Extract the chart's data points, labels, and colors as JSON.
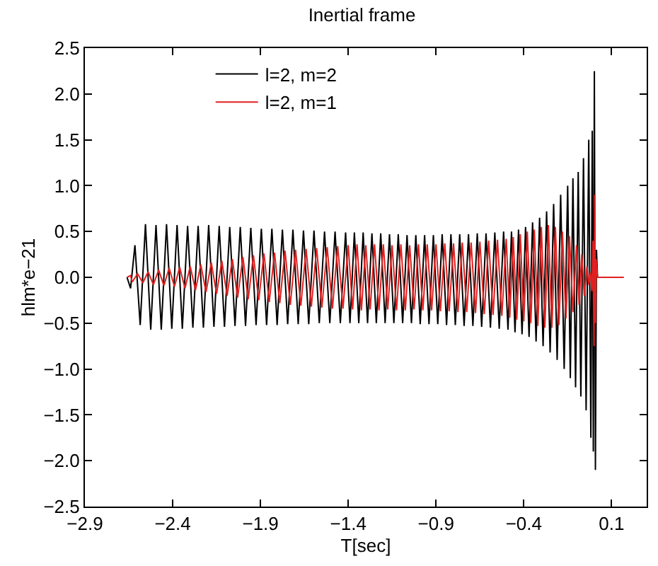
{
  "chart_data": {
    "type": "line",
    "title": "Inertial frame",
    "xlabel": "T[sec]",
    "ylabel": "hlm*e−21",
    "xlim": [
      -2.9,
      0.3
    ],
    "ylim": [
      -2.5,
      2.5
    ],
    "xticks": [
      {
        "value": -2.9,
        "label": "−2.9"
      },
      {
        "value": -2.4,
        "label": "−2.4"
      },
      {
        "value": -1.9,
        "label": "−1.9"
      },
      {
        "value": -1.4,
        "label": "−1.4"
      },
      {
        "value": -0.9,
        "label": "−0.9"
      },
      {
        "value": -0.4,
        "label": "−0.4"
      },
      0.1
    ],
    "yticks": [
      {
        "value": -2.5,
        "label": "−2.5"
      },
      {
        "value": -2.0,
        "label": "−2.0"
      },
      {
        "value": -1.5,
        "label": "−1.5"
      },
      {
        "value": -1.0,
        "label": "−1.0"
      },
      {
        "value": -0.5,
        "label": "−0.5"
      },
      {
        "value": 0,
        "label": "0.0"
      },
      0.5,
      {
        "value": 1,
        "label": "1.0"
      },
      1.5,
      {
        "value": 2,
        "label": "2.0"
      },
      2.5
    ],
    "legend": "top left",
    "marker": "none",
    "line_style": "solid",
    "series": [
      {
        "name": "l=2, m=2",
        "color": "#000000",
        "x": [
          -2.66,
          -2.64,
          -2.615,
          -2.585,
          -2.555,
          -2.525,
          -2.495,
          -2.465,
          -2.435,
          -2.405,
          -2.375,
          -2.345,
          -2.315,
          -2.285,
          -2.255,
          -2.225,
          -2.195,
          -2.165,
          -2.135,
          -2.105,
          -2.075,
          -2.045,
          -2.015,
          -1.985,
          -1.955,
          -1.925,
          -1.895,
          -1.865,
          -1.835,
          -1.805,
          -1.775,
          -1.745,
          -1.715,
          -1.685,
          -1.655,
          -1.625,
          -1.595,
          -1.565,
          -1.535,
          -1.505,
          -1.475,
          -1.445,
          -1.415,
          -1.39,
          -1.365,
          -1.34,
          -1.315,
          -1.29,
          -1.265,
          -1.24,
          -1.215,
          -1.19,
          -1.165,
          -1.14,
          -1.115,
          -1.09,
          -1.065,
          -1.04,
          -1.015,
          -0.99,
          -0.965,
          -0.94,
          -0.915,
          -0.89,
          -0.865,
          -0.84,
          -0.815,
          -0.79,
          -0.765,
          -0.74,
          -0.715,
          -0.69,
          -0.665,
          -0.64,
          -0.615,
          -0.59,
          -0.565,
          -0.54,
          -0.515,
          -0.49,
          -0.47,
          -0.45,
          -0.43,
          -0.41,
          -0.39,
          -0.37,
          -0.35,
          -0.33,
          -0.31,
          -0.29,
          -0.27,
          -0.25,
          -0.23,
          -0.21,
          -0.19,
          -0.17,
          -0.15,
          -0.135,
          -0.12,
          -0.105,
          -0.09,
          -0.075,
          -0.06,
          -0.045,
          -0.03,
          -0.018,
          -0.01,
          -0.004,
          0.002,
          0.008,
          0.014,
          0.02
        ],
        "values": [
          0,
          -0.12,
          0.35,
          -0.52,
          0.58,
          -0.57,
          0.57,
          -0.57,
          0.58,
          -0.56,
          0.57,
          -0.56,
          0.56,
          -0.55,
          0.56,
          -0.55,
          0.57,
          -0.54,
          0.56,
          -0.54,
          0.55,
          -0.53,
          0.55,
          -0.53,
          0.54,
          -0.52,
          0.53,
          -0.52,
          0.53,
          -0.52,
          0.52,
          -0.51,
          0.52,
          -0.51,
          0.51,
          -0.51,
          0.51,
          -0.5,
          0.5,
          -0.5,
          0.5,
          -0.5,
          0.49,
          -0.5,
          0.49,
          -0.5,
          0.49,
          -0.5,
          0.48,
          -0.5,
          0.48,
          -0.5,
          0.47,
          -0.5,
          0.47,
          -0.5,
          0.46,
          -0.5,
          0.46,
          -0.51,
          0.46,
          -0.51,
          0.46,
          -0.51,
          0.47,
          -0.52,
          0.47,
          -0.52,
          0.47,
          -0.53,
          0.47,
          -0.53,
          0.48,
          -0.54,
          0.48,
          -0.55,
          0.49,
          -0.56,
          0.5,
          -0.57,
          0.5,
          -0.6,
          0.52,
          -0.62,
          0.55,
          -0.65,
          0.6,
          -0.7,
          0.65,
          -0.75,
          0.72,
          -0.82,
          0.8,
          -0.9,
          0.9,
          -1.0,
          1.0,
          -1.1,
          1.08,
          -1.2,
          1.15,
          -1.3,
          1.3,
          -1.45,
          1.5,
          -1.75,
          1.6,
          -1.9,
          2.25,
          -2.1,
          0.3,
          0
        ]
      },
      {
        "name": "l=2, m=1",
        "color": "#e02020",
        "x": [
          -2.66,
          -2.64,
          -2.63,
          -2.6,
          -2.57,
          -2.54,
          -2.51,
          -2.48,
          -2.45,
          -2.42,
          -2.39,
          -2.36,
          -2.33,
          -2.3,
          -2.27,
          -2.24,
          -2.21,
          -2.18,
          -2.15,
          -2.12,
          -2.09,
          -2.06,
          -2.03,
          -2.0,
          -1.97,
          -1.94,
          -1.91,
          -1.88,
          -1.85,
          -1.82,
          -1.79,
          -1.76,
          -1.73,
          -1.7,
          -1.67,
          -1.64,
          -1.61,
          -1.58,
          -1.55,
          -1.52,
          -1.49,
          -1.46,
          -1.43,
          -1.4,
          -1.375,
          -1.35,
          -1.325,
          -1.3,
          -1.275,
          -1.25,
          -1.225,
          -1.2,
          -1.175,
          -1.15,
          -1.125,
          -1.1,
          -1.075,
          -1.05,
          -1.025,
          -1.0,
          -0.975,
          -0.95,
          -0.925,
          -0.9,
          -0.875,
          -0.85,
          -0.825,
          -0.8,
          -0.775,
          -0.75,
          -0.725,
          -0.7,
          -0.675,
          -0.65,
          -0.625,
          -0.6,
          -0.575,
          -0.55,
          -0.525,
          -0.5,
          -0.48,
          -0.46,
          -0.44,
          -0.42,
          -0.4,
          -0.38,
          -0.36,
          -0.34,
          -0.32,
          -0.3,
          -0.28,
          -0.26,
          -0.24,
          -0.22,
          -0.2,
          -0.18,
          -0.16,
          -0.14,
          -0.12,
          -0.1,
          -0.085,
          -0.07,
          -0.055,
          -0.04,
          -0.03,
          -0.02,
          -0.012,
          -0.006,
          0.0,
          0.004,
          0.008,
          0.012,
          0.02,
          0.17
        ],
        "values": [
          0,
          0.02,
          -0.05,
          0.04,
          -0.06,
          0.06,
          -0.08,
          0.08,
          -0.09,
          0.1,
          -0.1,
          0.11,
          -0.12,
          0.12,
          -0.14,
          0.14,
          -0.16,
          0.16,
          -0.18,
          0.18,
          -0.2,
          0.2,
          -0.22,
          0.22,
          -0.24,
          0.24,
          -0.25,
          0.26,
          -0.27,
          0.27,
          -0.28,
          0.29,
          -0.3,
          0.3,
          -0.31,
          0.31,
          -0.32,
          0.32,
          -0.33,
          0.33,
          -0.34,
          0.34,
          -0.34,
          0.35,
          -0.35,
          0.36,
          -0.36,
          0.35,
          -0.35,
          0.36,
          -0.36,
          0.36,
          -0.35,
          0.35,
          -0.36,
          0.36,
          -0.36,
          0.35,
          -0.35,
          0.36,
          -0.36,
          0.36,
          -0.36,
          0.36,
          -0.37,
          0.37,
          -0.37,
          0.37,
          -0.38,
          0.38,
          -0.38,
          0.38,
          -0.39,
          0.39,
          -0.4,
          0.4,
          -0.41,
          0.41,
          -0.42,
          0.42,
          -0.44,
          0.44,
          -0.46,
          0.47,
          -0.48,
          0.5,
          -0.5,
          0.52,
          -0.53,
          0.55,
          -0.55,
          0.57,
          -0.55,
          0.55,
          -0.52,
          0.5,
          -0.45,
          0.45,
          -0.38,
          0.35,
          -0.3,
          0.25,
          -0.2,
          0.12,
          -0.08,
          0.05,
          -0.15,
          0.4,
          -0.75,
          0.9,
          -0.5,
          0.2,
          0,
          0
        ]
      }
    ]
  }
}
